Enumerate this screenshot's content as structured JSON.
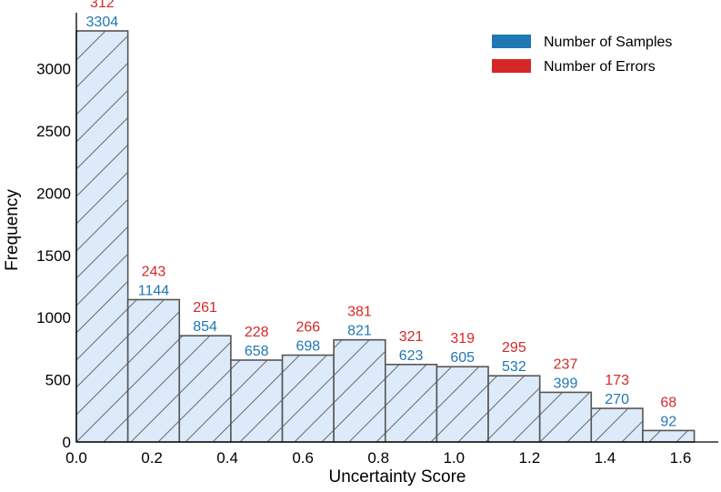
{
  "chart_data": {
    "type": "bar",
    "xlabel": "Uncertainty Score",
    "ylabel": "Frequency",
    "xlim": [
      0.0,
      1.7
    ],
    "ylim": [
      0,
      3450
    ],
    "xticks": [
      "0.0",
      "0.2",
      "0.4",
      "0.6",
      "0.8",
      "1.0",
      "1.2",
      "1.4",
      "1.6"
    ],
    "xtick_values": [
      0.0,
      0.2,
      0.4,
      0.6,
      0.8,
      1.0,
      1.2,
      1.4,
      1.6
    ],
    "yticks": [
      "0",
      "500",
      "1000",
      "1500",
      "2000",
      "2500",
      "3000"
    ],
    "ytick_values": [
      0,
      500,
      1000,
      1500,
      2000,
      2500,
      3000
    ],
    "bin_edges": [
      0.0,
      0.1364,
      0.2727,
      0.4091,
      0.5455,
      0.6818,
      0.8182,
      0.9545,
      1.0909,
      1.2273,
      1.3636,
      1.5,
      1.6364
    ],
    "series": [
      {
        "name": "Number of Samples",
        "values": [
          3304,
          1144,
          854,
          658,
          698,
          821,
          623,
          605,
          532,
          399,
          270,
          92
        ],
        "color": "#1f77b4"
      },
      {
        "name": "Number of Errors",
        "values": [
          312,
          243,
          261,
          228,
          266,
          381,
          321,
          319,
          295,
          237,
          173,
          68
        ],
        "color": "#d62728"
      }
    ],
    "legend": "top-right",
    "grid": false,
    "bar_fill": "#ddeaf9",
    "bar_edge": "#555555",
    "hatch": "/"
  }
}
